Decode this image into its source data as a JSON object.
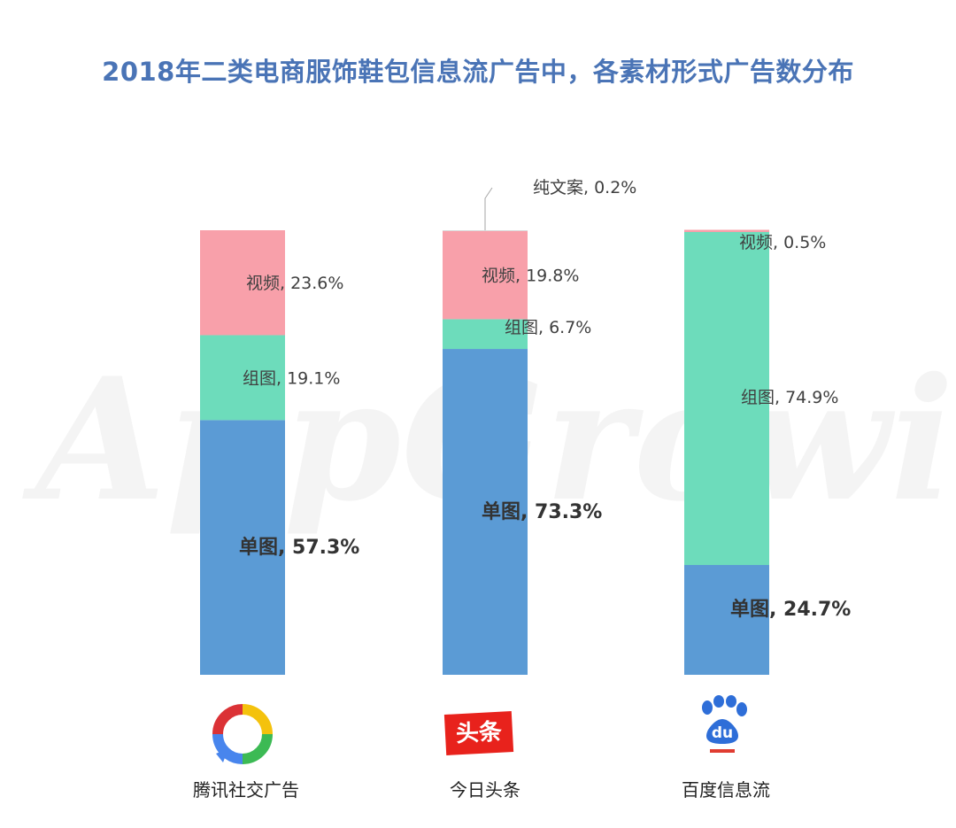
{
  "title": "2018年二类电商服饰鞋包信息流广告中，各素材形式广告数分布",
  "watermark": "AppGrowing",
  "chart_data": {
    "type": "bar",
    "stacked": true,
    "categories": [
      "腾讯社交广告",
      "今日头条",
      "百度信息流"
    ],
    "series": [
      {
        "name": "单图",
        "values": [
          57.3,
          73.3,
          24.7
        ],
        "color": "#5b9bd5"
      },
      {
        "name": "组图",
        "values": [
          19.1,
          6.7,
          74.9
        ],
        "color": "#6ddcbb"
      },
      {
        "name": "视频",
        "values": [
          23.6,
          19.8,
          0.5
        ],
        "color": "#f8a0aa"
      },
      {
        "name": "纯文案",
        "values": [
          0,
          0.2,
          0
        ],
        "color": "#d8d8d8"
      }
    ],
    "labels": [
      [
        "单图, 57.3%",
        "组图, 19.1%",
        "视频, 23.6%",
        ""
      ],
      [
        "单图, 73.3%",
        "组图, 6.7%",
        "视频, 19.8%",
        "纯文案, 0.2%"
      ],
      [
        "单图, 24.7%",
        "组图, 74.9%",
        "视频, 0.5%",
        ""
      ]
    ],
    "ylim": [
      0,
      100
    ],
    "unit": "%"
  },
  "platforms": {
    "tencent": "腾讯社交广告",
    "toutiao": "今日头条",
    "toutiao_logo_text": "头条",
    "baidu": "百度信息流",
    "baidu_logo_text": "du"
  }
}
